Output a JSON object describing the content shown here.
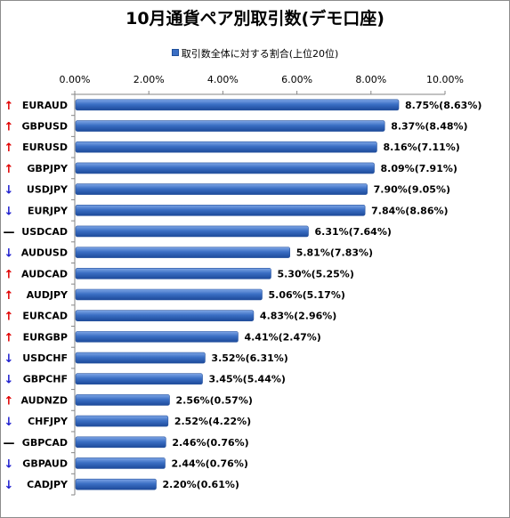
{
  "chart_data": {
    "type": "bar",
    "orientation": "horizontal",
    "title": "10月通貨ペア別取引数(デモ口座)",
    "legend": {
      "position": "top",
      "label": "取引数全体に対する割合(上位20位)"
    },
    "x_axis": {
      "position": "top",
      "min": 0,
      "max": 10,
      "ticks": [
        "0.00%",
        "2.00%",
        "4.00%",
        "6.00%",
        "8.00%",
        "10.00%"
      ]
    },
    "grid": false,
    "bar_color": "#3b6fc4",
    "categories": [
      "EURAUD",
      "GBPUSD",
      "EURUSD",
      "GBPJPY",
      "USDJPY",
      "EURJPY",
      "USDCAD",
      "AUDUSD",
      "AUDCAD",
      "AUDJPY",
      "EURCAD",
      "EURGBP",
      "USDCHF",
      "GBPCHF",
      "AUDNZD",
      "CHFJPY",
      "GBPCAD",
      "GBPAUD",
      "CADJPY"
    ],
    "trends": [
      "up",
      "up",
      "up",
      "up",
      "down",
      "down",
      "flat",
      "down",
      "up",
      "up",
      "up",
      "up",
      "down",
      "down",
      "up",
      "down",
      "flat",
      "down",
      "down"
    ],
    "series": [
      {
        "name": "取引数全体に対する割合(上位20位)",
        "values": [
          8.75,
          8.37,
          8.16,
          8.09,
          7.9,
          7.84,
          6.31,
          5.81,
          5.3,
          5.06,
          4.83,
          4.41,
          3.52,
          3.45,
          2.56,
          2.52,
          2.46,
          2.44,
          2.2
        ]
      }
    ],
    "previous_values": [
      8.63,
      8.48,
      7.11,
      7.91,
      9.05,
      8.86,
      7.64,
      7.83,
      5.25,
      5.17,
      2.96,
      2.47,
      6.31,
      5.44,
      0.57,
      4.22,
      0.76,
      0.76,
      0.61
    ],
    "data_labels": [
      "8.75%(8.63%)",
      "8.37%(8.48%)",
      "8.16%(7.11%)",
      "8.09%(7.91%)",
      "7.90%(9.05%)",
      "7.84%(8.86%)",
      "6.31%(7.64%)",
      "5.81%(7.83%)",
      "5.30%(5.25%)",
      "5.06%(5.17%)",
      "4.83%(2.96%)",
      "4.41%(2.47%)",
      "3.52%(6.31%)",
      "3.45%(5.44%)",
      "2.56%(0.57%)",
      "2.52%(4.22%)",
      "2.46%(0.76%)",
      "2.44%(0.76%)",
      "2.20%(0.61%)"
    ]
  },
  "trend_symbols": {
    "up": "↑",
    "down": "↓",
    "flat": "—"
  }
}
